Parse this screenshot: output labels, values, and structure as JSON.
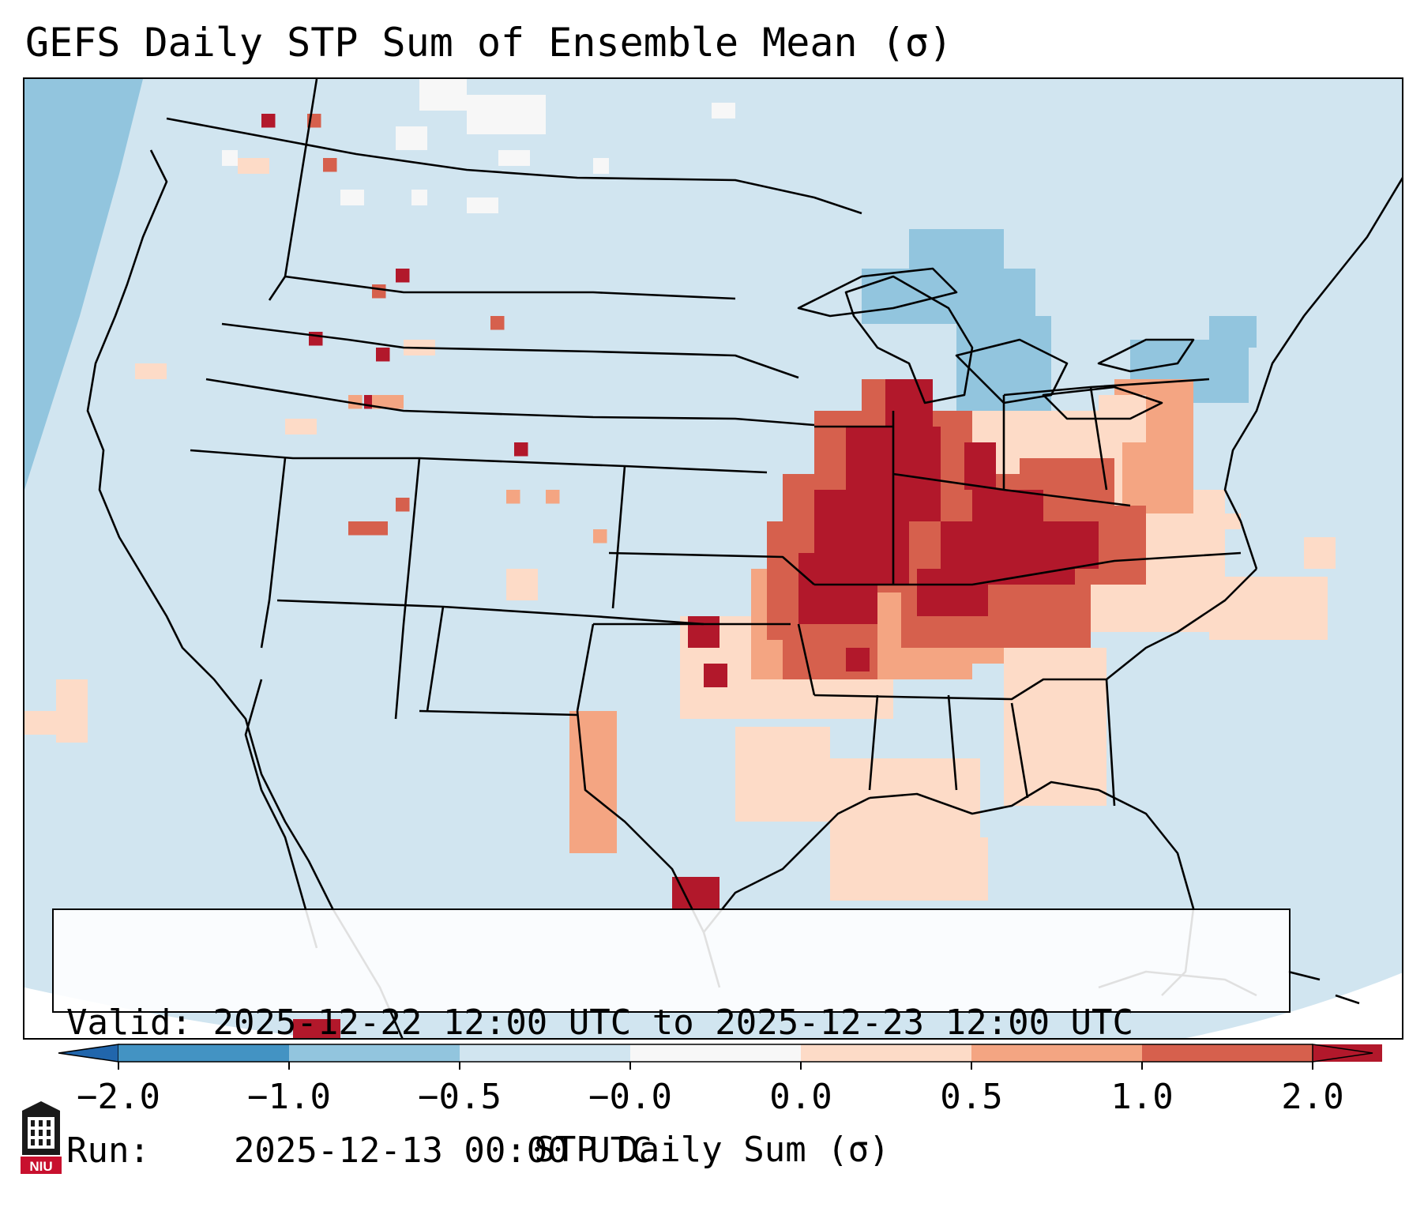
{
  "title": "GEFS Daily STP Sum of Ensemble Mean (σ)",
  "info": {
    "valid_label": "Valid:",
    "valid_value": "2025-12-22 12:00 UTC to 2025-12-23 12:00 UTC",
    "run_label": "Run:",
    "run_value": "2025-12-13 00:00 UTC"
  },
  "colorbar": {
    "label": "STP Daily Sum (σ)",
    "ticks": [
      "−2.0",
      "−1.0",
      "−0.5",
      "−0.0",
      "0.0",
      "0.5",
      "1.0",
      "2.0"
    ],
    "colors": [
      "#4393c3",
      "#92c5de",
      "#d1e5f0",
      "#f7f7f7",
      "#fddbc7",
      "#f4a582",
      "#d6604d",
      "#b2182b"
    ],
    "extend_low_color": "#2166ac",
    "extend_high_color": "#b2182b"
  },
  "map": {
    "background_color": "#d1e5f0",
    "anomaly_colors": {
      "strong_negative": "#92c5de",
      "neutral": "#f7f7f7",
      "weak_positive": "#fddbc7",
      "moderate_positive": "#f4a582",
      "high_positive": "#d6604d",
      "very_high_positive": "#b2182b"
    }
  },
  "logo": {
    "name": "Northern Illinois University",
    "text": "NIU",
    "color": "#c8102e"
  }
}
